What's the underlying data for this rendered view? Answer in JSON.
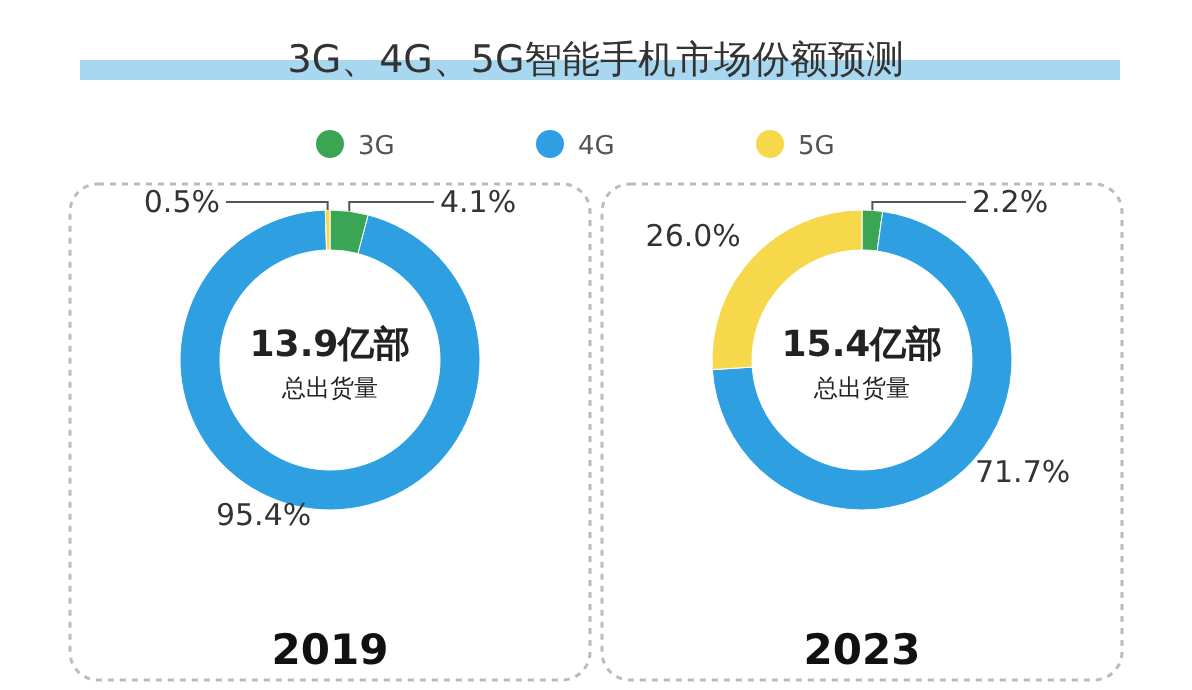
{
  "chart_data": [
    {
      "type": "donut",
      "title": "3G、4G、5G智能手机市场份额预测",
      "legend": "top",
      "xlabel": "2019",
      "annotations": [
        "13.9亿部",
        "总出货量"
      ],
      "categories": [
        "3G",
        "4G",
        "5G"
      ],
      "values": [
        4.1,
        95.4,
        0.5
      ],
      "colors": [
        "#3aa655",
        "#2e9fe0",
        "#f6d84a"
      ],
      "value_labels": [
        "4.1%",
        "95.4%",
        "0.5%"
      ]
    },
    {
      "type": "donut",
      "xlabel": "2023",
      "annotations": [
        "15.4亿部",
        "总出货量"
      ],
      "categories": [
        null,
        null,
        null
      ],
      "values": [
        2.2,
        71.7,
        26.0
      ],
      "colors": [
        "#3aa655",
        "#2e9fe0",
        "#f6d84a"
      ],
      "value_labels": [
        "2.2%",
        "71.7%",
        "26.0%"
      ]
    }
  ]
}
